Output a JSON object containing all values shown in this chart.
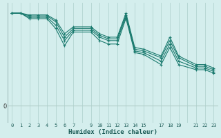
{
  "xlabel": "Humidex (Indice chaleur)",
  "background_color": "#d4eeed",
  "plot_bg_color": "#d4eeed",
  "grid_color": "#b8d8d5",
  "line_color": "#1a7a6e",
  "zero_line_color": "#b0ccc8",
  "xlim": [
    -0.5,
    23.5
  ],
  "ylim": [
    -5,
    30
  ],
  "zero_y": 0,
  "x_ticks": [
    0,
    1,
    2,
    3,
    4,
    5,
    6,
    7,
    9,
    10,
    11,
    12,
    13,
    14,
    15,
    17,
    18,
    19,
    21,
    22,
    23
  ],
  "x_labels": [
    "0",
    "1",
    "2",
    "3",
    "4",
    "5",
    "6",
    "7",
    "9",
    "10",
    "11",
    "12",
    "13",
    "14",
    "15",
    "17",
    "18",
    "19",
    "21",
    "22",
    "23"
  ],
  "series": [
    {
      "x": [
        0,
        1,
        2,
        3,
        4,
        5,
        6,
        7,
        9,
        10,
        11,
        12,
        13,
        14,
        15,
        17,
        18,
        19,
        21,
        22,
        23
      ],
      "y": [
        27,
        27,
        26.5,
        26.5,
        26.5,
        25,
        21,
        23,
        23,
        21,
        20,
        20,
        27,
        17,
        16.5,
        14.5,
        20,
        14.5,
        12,
        12,
        11
      ]
    },
    {
      "x": [
        0,
        1,
        2,
        3,
        4,
        5,
        6,
        7,
        9,
        10,
        11,
        12,
        13,
        14,
        15,
        17,
        18,
        19,
        21,
        22,
        23
      ],
      "y": [
        27,
        27,
        26.2,
        26.2,
        26.2,
        24.5,
        20,
        22.5,
        22.5,
        20.5,
        19.5,
        19.5,
        26.5,
        16.5,
        16,
        14,
        19,
        14,
        11.5,
        11.5,
        10.5
      ]
    },
    {
      "x": [
        0,
        1,
        2,
        3,
        4,
        5,
        6,
        7,
        9,
        10,
        11,
        12,
        13,
        14,
        15,
        17,
        18,
        19,
        21,
        22,
        23
      ],
      "y": [
        27,
        27,
        25.8,
        25.8,
        25.8,
        23.5,
        19,
        22,
        22,
        20,
        19,
        19,
        26,
        16,
        15.5,
        13,
        18,
        13,
        11,
        11,
        10
      ]
    },
    {
      "x": [
        0,
        1,
        2,
        3,
        4,
        5,
        6,
        7,
        9,
        10,
        11,
        12,
        13,
        14,
        15,
        17,
        18,
        19,
        21,
        22,
        23
      ],
      "y": [
        27,
        27,
        25.4,
        25.4,
        25.4,
        22.5,
        17.5,
        21.5,
        21.5,
        19,
        18,
        18,
        25.5,
        15.5,
        15,
        12,
        17,
        12,
        10.5,
        10.5,
        9.5
      ]
    }
  ]
}
